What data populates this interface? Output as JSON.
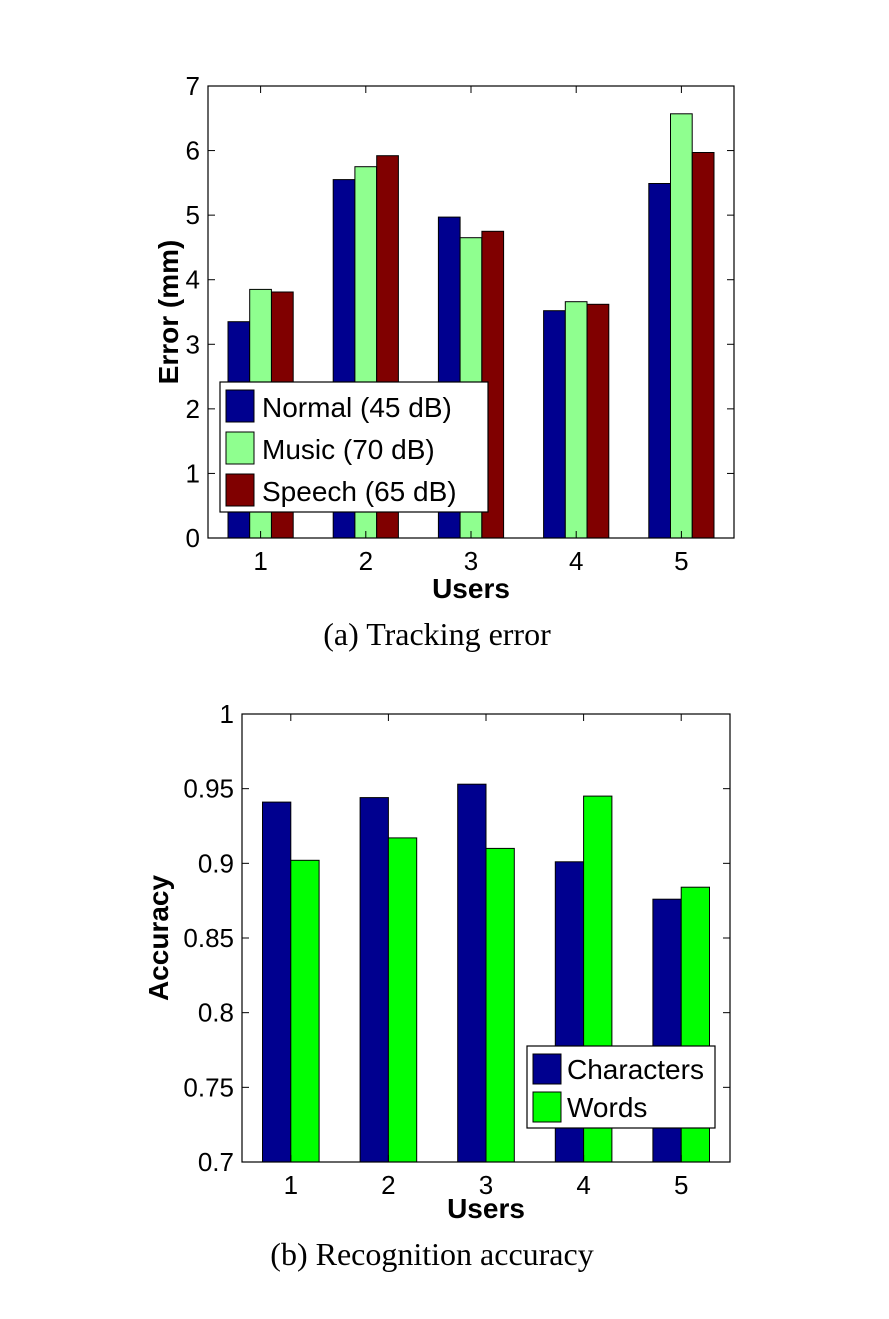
{
  "chart_data": [
    {
      "type": "bar",
      "caption": "(a) Tracking error",
      "xlabel": "Users",
      "ylabel": "Error (mm)",
      "categories": [
        "1",
        "2",
        "3",
        "4",
        "5"
      ],
      "ylim": [
        0,
        7
      ],
      "yticks": [
        "0",
        "1",
        "2",
        "3",
        "4",
        "5",
        "6",
        "7"
      ],
      "grid": false,
      "legend_position": "bottom-left",
      "series": [
        {
          "name": "Normal (45 dB)",
          "color": "#00008f",
          "values": [
            3.35,
            5.55,
            4.97,
            3.52,
            5.49
          ]
        },
        {
          "name": "Music (70 dB)",
          "color": "#8fff8f",
          "values": [
            3.85,
            5.75,
            4.65,
            3.66,
            6.57
          ]
        },
        {
          "name": "Speech (65 dB)",
          "color": "#800000",
          "values": [
            3.81,
            5.92,
            4.75,
            3.62,
            5.97
          ]
        }
      ]
    },
    {
      "type": "bar",
      "caption": "(b) Recognition accuracy",
      "xlabel": "Users",
      "ylabel": "Accuracy",
      "categories": [
        "1",
        "2",
        "3",
        "4",
        "5"
      ],
      "ylim": [
        0.7,
        1
      ],
      "yticks": [
        "0.7",
        "0.75",
        "0.8",
        "0.85",
        "0.9",
        "0.95",
        "1"
      ],
      "grid": false,
      "legend_position": "bottom-right",
      "series": [
        {
          "name": "Characters",
          "color": "#00008f",
          "values": [
            0.941,
            0.944,
            0.953,
            0.901,
            0.876
          ]
        },
        {
          "name": "Words",
          "color": "#00ff00",
          "values": [
            0.902,
            0.917,
            0.91,
            0.945,
            0.884
          ]
        }
      ]
    }
  ]
}
